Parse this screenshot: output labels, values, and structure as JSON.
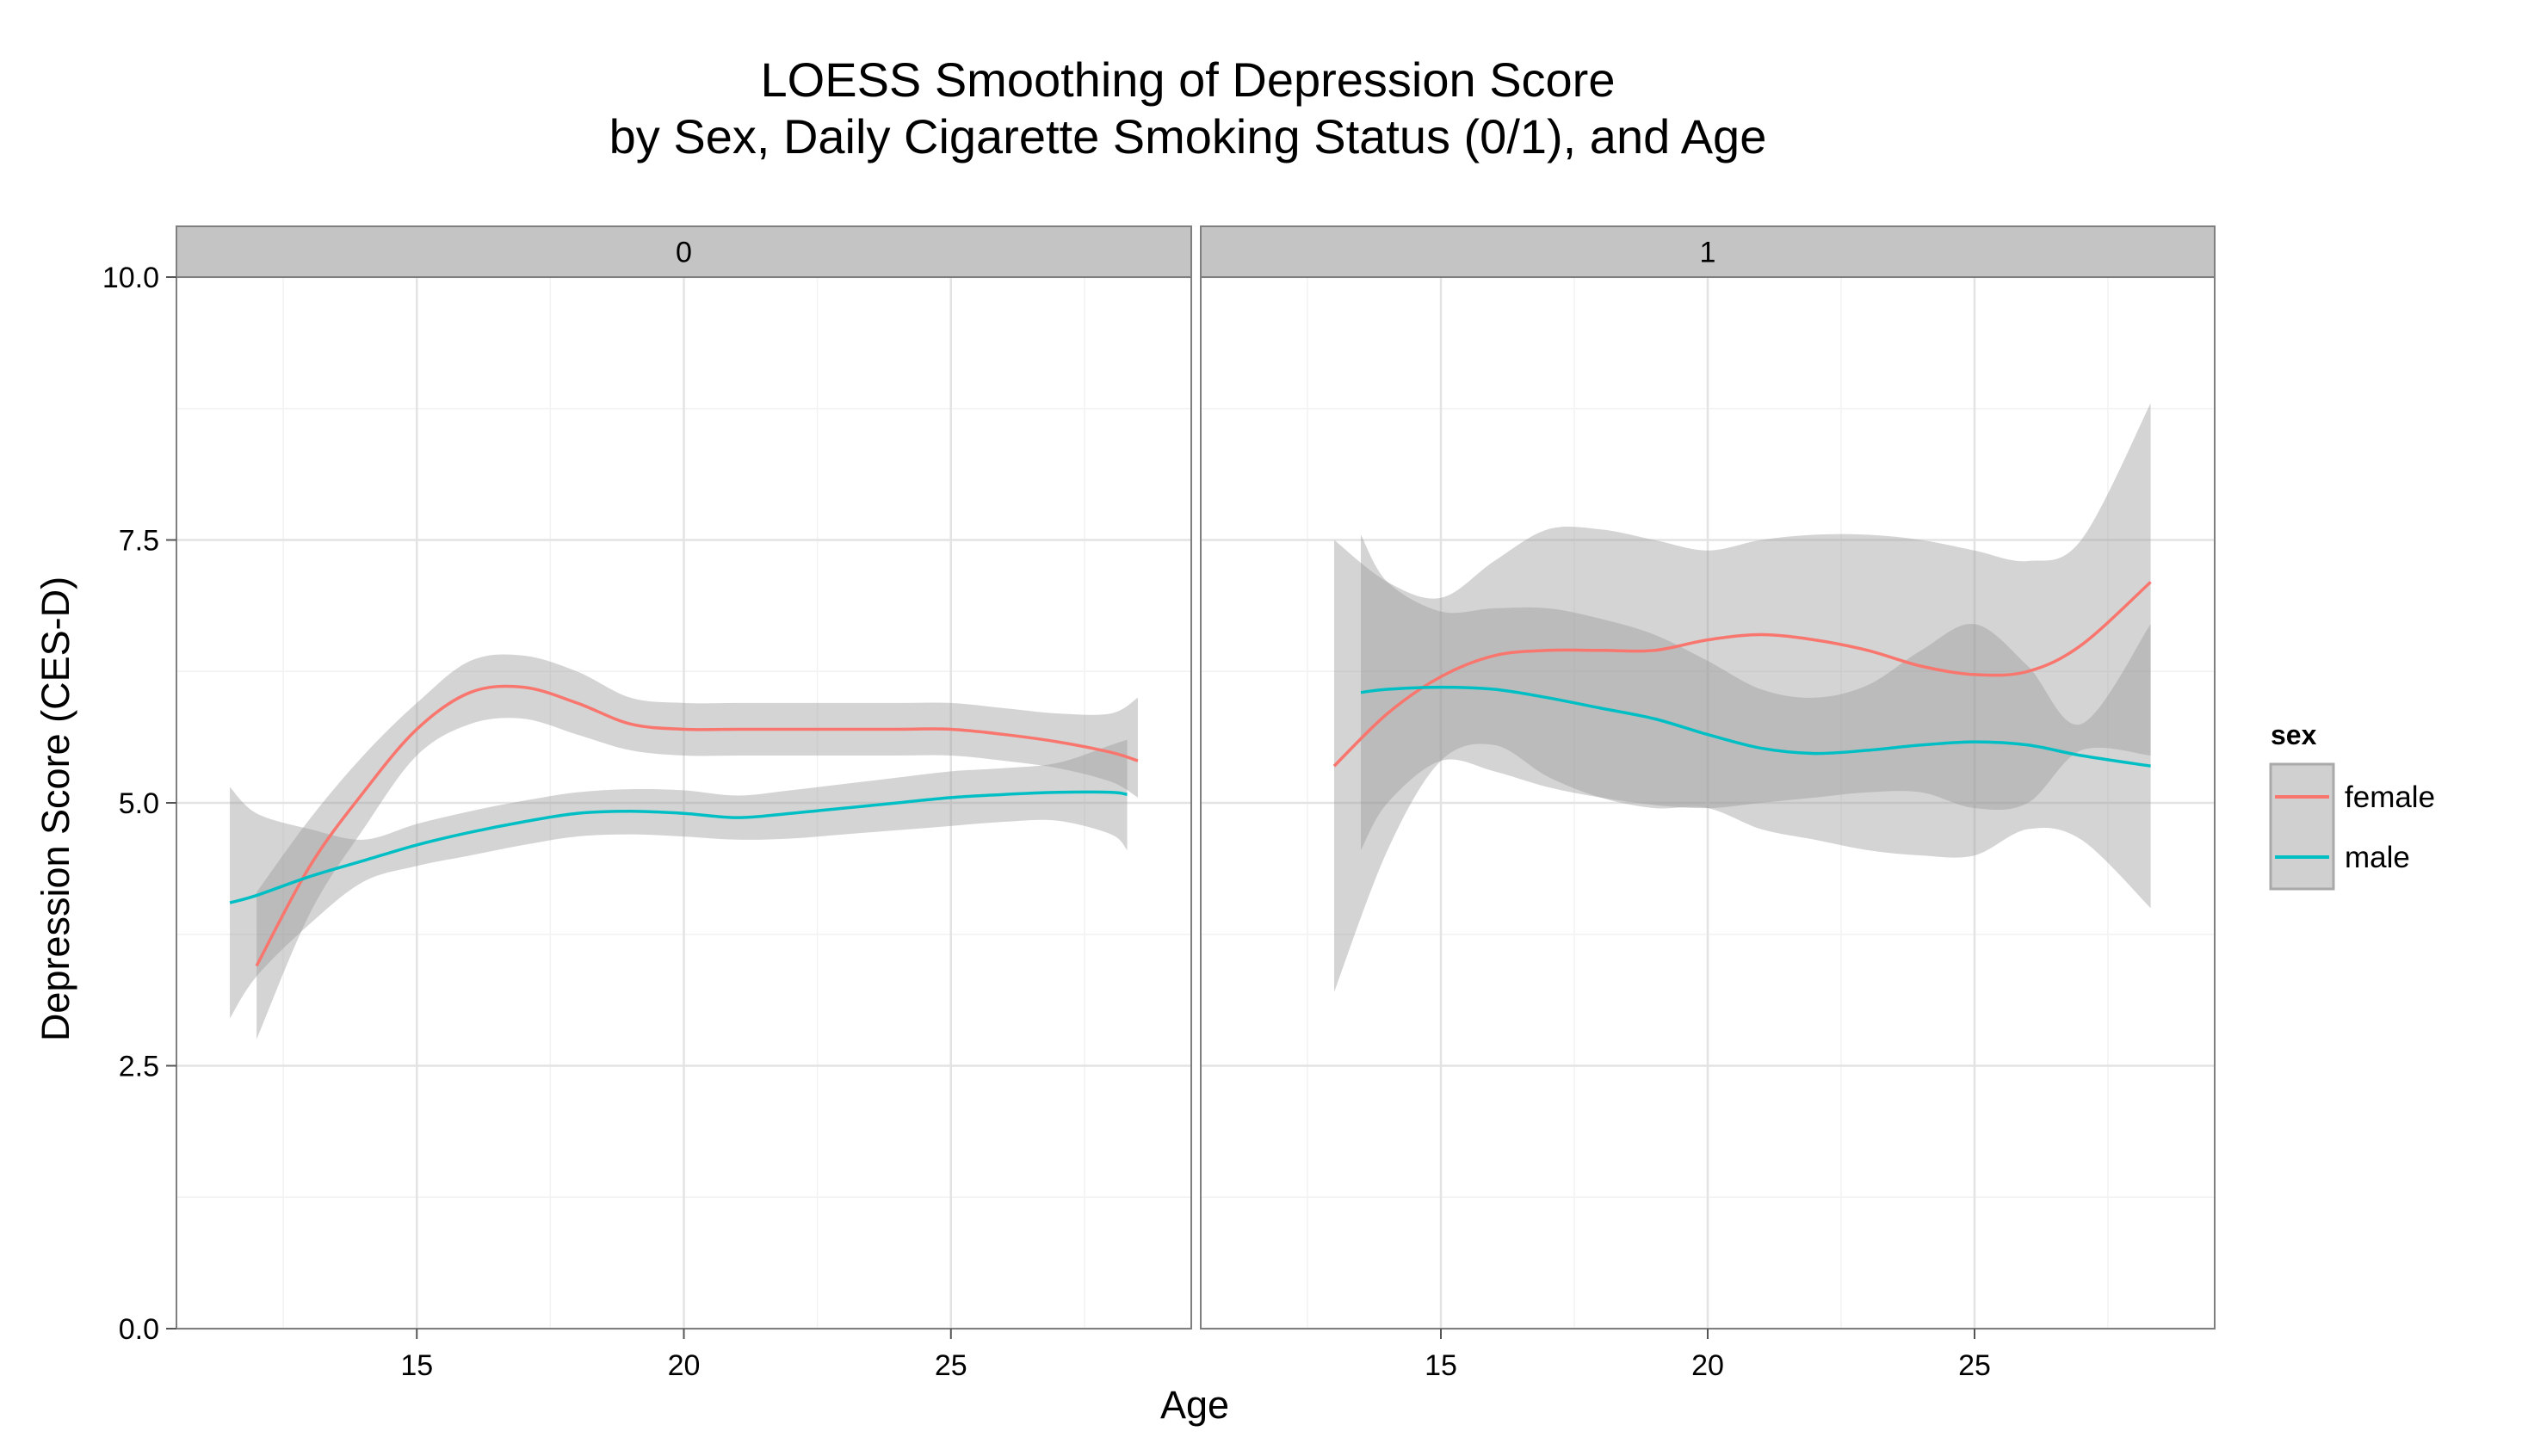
{
  "chart_data": {
    "type": "line",
    "title_line1": "LOESS Smoothing of Depression Score",
    "title_line2": "by Sex, Daily Cigarette Smoking Status (0/1), and Age",
    "xlabel": "Age",
    "ylabel": "Depression Score (CES-D)",
    "xlim": [
      10.5,
      29.5
    ],
    "ylim": [
      0,
      10
    ],
    "x_ticks": [
      15,
      20,
      25
    ],
    "x_tick_labels": [
      "15",
      "20",
      "25"
    ],
    "y_ticks": [
      0,
      2.5,
      5,
      7.5,
      10
    ],
    "y_tick_labels": [
      "0.0",
      "2.5",
      "5.0",
      "7.5",
      "10.0"
    ],
    "grid": true,
    "theme": "gray-band smooth with confidence ribbon",
    "legend": {
      "title": "sex",
      "placement": "right",
      "entries": [
        {
          "label": "female",
          "color": "#F8766D"
        },
        {
          "label": "male",
          "color": "#00BFC4"
        }
      ]
    },
    "panels": [
      {
        "label": "0",
        "series": [
          {
            "name": "female",
            "color": "#F8766D",
            "x": [
              12.0,
              13.0,
              14.0,
              15.0,
              16.0,
              17.0,
              18.0,
              19.0,
              20.0,
              21.0,
              22.0,
              23.0,
              24.0,
              25.0,
              26.0,
              27.0,
              28.0,
              28.5
            ],
            "y": [
              3.45,
              4.4,
              5.1,
              5.7,
              6.05,
              6.1,
              5.95,
              5.75,
              5.7,
              5.7,
              5.7,
              5.7,
              5.7,
              5.7,
              5.65,
              5.58,
              5.48,
              5.4
            ],
            "lower": [
              2.75,
              3.95,
              4.75,
              5.45,
              5.75,
              5.8,
              5.65,
              5.5,
              5.45,
              5.45,
              5.45,
              5.45,
              5.45,
              5.45,
              5.4,
              5.33,
              5.2,
              5.05
            ],
            "upper": [
              4.15,
              4.85,
              5.45,
              5.95,
              6.35,
              6.4,
              6.25,
              6.0,
              5.95,
              5.95,
              5.95,
              5.95,
              5.95,
              5.95,
              5.9,
              5.85,
              5.85,
              6.0
            ]
          },
          {
            "name": "male",
            "color": "#00BFC4",
            "x": [
              11.5,
              12.0,
              13.0,
              14.0,
              15.0,
              16.0,
              17.0,
              18.0,
              19.0,
              20.0,
              21.0,
              22.0,
              23.0,
              24.0,
              25.0,
              26.0,
              27.0,
              28.0,
              28.3
            ],
            "y": [
              4.05,
              4.12,
              4.3,
              4.45,
              4.6,
              4.72,
              4.82,
              4.9,
              4.92,
              4.9,
              4.86,
              4.9,
              4.95,
              5.0,
              5.05,
              5.08,
              5.1,
              5.1,
              5.08
            ],
            "lower": [
              2.95,
              3.35,
              3.85,
              4.25,
              4.4,
              4.5,
              4.6,
              4.68,
              4.7,
              4.68,
              4.65,
              4.66,
              4.7,
              4.74,
              4.78,
              4.82,
              4.83,
              4.7,
              4.55
            ],
            "upper": [
              5.15,
              4.9,
              4.75,
              4.65,
              4.8,
              4.92,
              5.02,
              5.1,
              5.13,
              5.12,
              5.07,
              5.12,
              5.18,
              5.24,
              5.3,
              5.33,
              5.38,
              5.55,
              5.6
            ]
          }
        ]
      },
      {
        "label": "1",
        "series": [
          {
            "name": "female",
            "color": "#F8766D",
            "x": [
              13.0,
              14.0,
              15.0,
              16.0,
              17.0,
              18.0,
              19.0,
              20.0,
              21.0,
              22.0,
              23.0,
              24.0,
              25.0,
              26.0,
              27.0,
              28.3
            ],
            "y": [
              5.35,
              5.85,
              6.2,
              6.4,
              6.45,
              6.45,
              6.45,
              6.55,
              6.6,
              6.55,
              6.45,
              6.3,
              6.22,
              6.25,
              6.5,
              7.1
            ],
            "lower": [
              3.2,
              4.55,
              5.4,
              5.55,
              5.25,
              5.05,
              4.95,
              4.95,
              4.75,
              4.65,
              4.55,
              4.5,
              4.5,
              4.75,
              4.65,
              4.0
            ],
            "upper": [
              7.5,
              7.1,
              6.95,
              7.3,
              7.6,
              7.6,
              7.5,
              7.4,
              7.5,
              7.55,
              7.55,
              7.5,
              7.4,
              7.3,
              7.5,
              8.8
            ]
          },
          {
            "name": "male",
            "color": "#00BFC4",
            "x": [
              13.5,
              14.0,
              15.0,
              16.0,
              17.0,
              18.0,
              19.0,
              20.0,
              21.0,
              22.0,
              23.0,
              24.0,
              25.0,
              26.0,
              27.0,
              28.3
            ],
            "y": [
              6.05,
              6.08,
              6.1,
              6.08,
              6.0,
              5.9,
              5.8,
              5.65,
              5.52,
              5.47,
              5.5,
              5.55,
              5.58,
              5.55,
              5.45,
              5.35
            ],
            "lower": [
              4.55,
              5.0,
              5.4,
              5.3,
              5.15,
              5.05,
              4.98,
              4.95,
              5.0,
              5.05,
              5.1,
              5.1,
              4.95,
              5.0,
              5.5,
              5.45
            ],
            "upper": [
              7.55,
              7.1,
              6.82,
              6.85,
              6.85,
              6.75,
              6.6,
              6.35,
              6.08,
              6.0,
              6.12,
              6.45,
              6.7,
              6.3,
              5.75,
              6.7
            ]
          }
        ]
      }
    ]
  }
}
